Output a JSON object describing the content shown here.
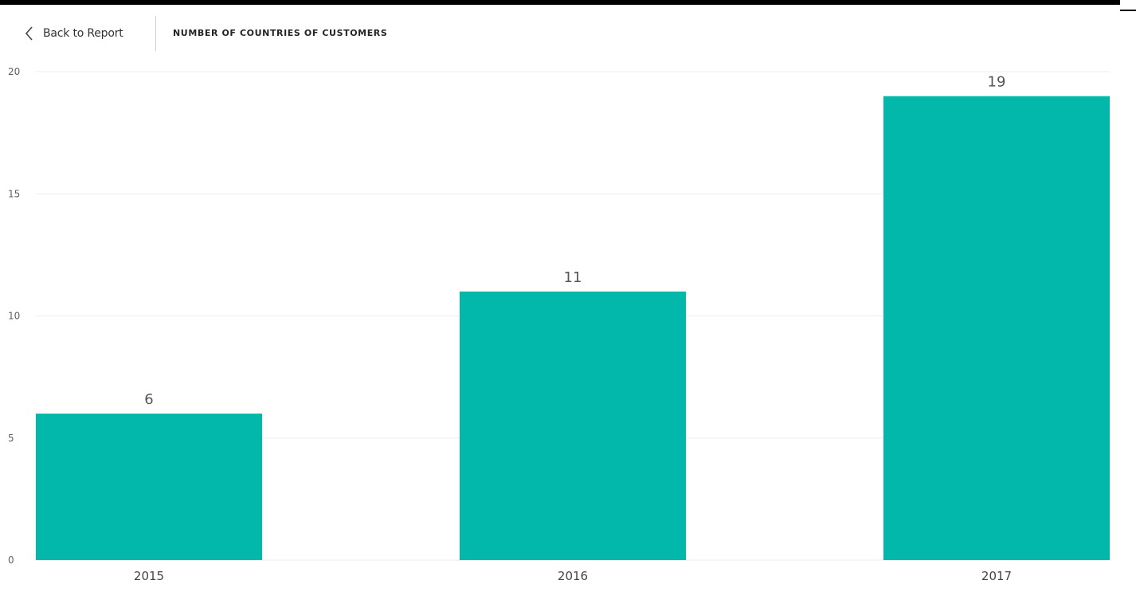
{
  "header": {
    "back_label": "Back to Report",
    "title": "NUMBER OF COUNTRIES OF CUSTOMERS"
  },
  "icons": {
    "back": "chevron-left-icon"
  },
  "colors": {
    "bar": "#01B8AA",
    "gridline": "#eeeeee",
    "axis_text": "#605e5c"
  },
  "chart_data": {
    "type": "bar",
    "title": "NUMBER OF COUNTRIES OF CUSTOMERS",
    "xlabel": "",
    "ylabel": "",
    "categories": [
      "2015",
      "2016",
      "2017"
    ],
    "values": [
      6,
      11,
      19
    ],
    "data_labels": [
      "6",
      "11",
      "19"
    ],
    "ylim": [
      0,
      20
    ],
    "yticks": [
      0,
      5,
      10,
      15,
      20
    ],
    "grid": true,
    "legend": "none"
  }
}
